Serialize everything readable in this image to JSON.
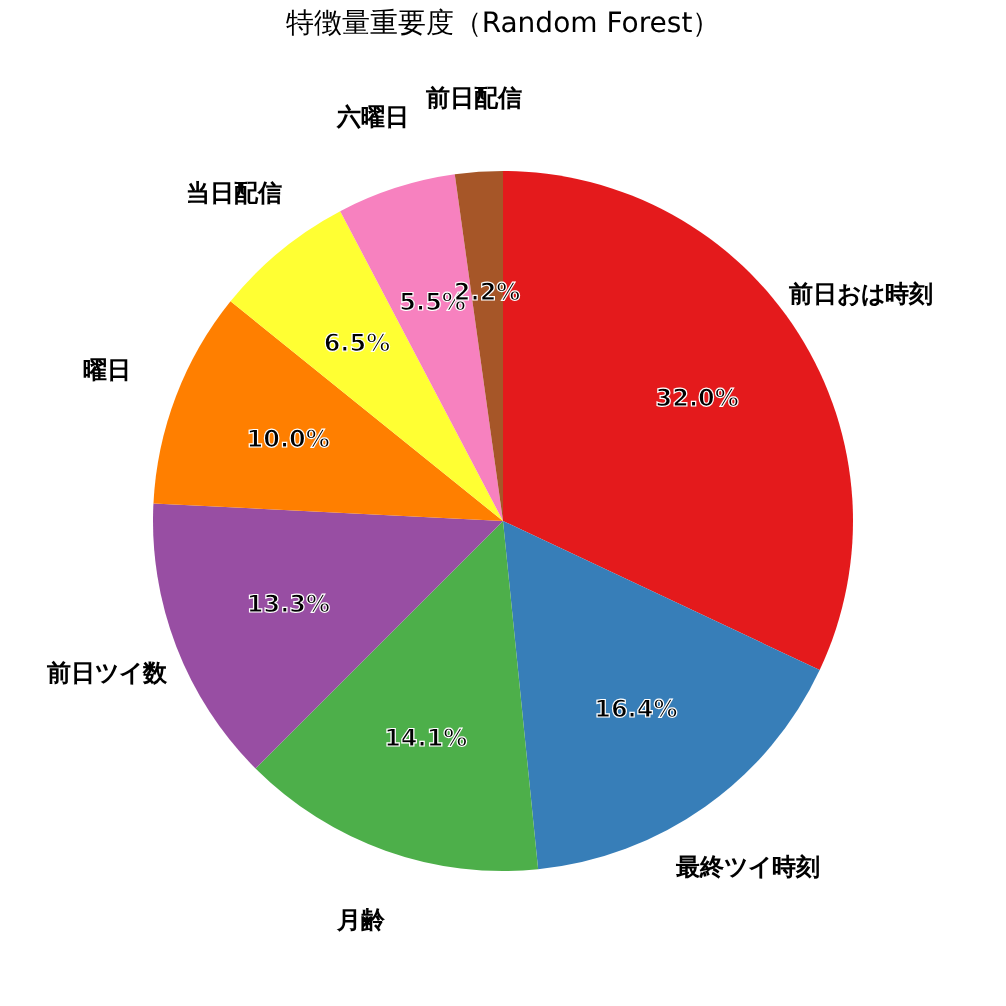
{
  "chart_data": {
    "type": "pie",
    "title": "特徴量重要度（Random Forest）",
    "categories": [
      "前日おは時刻",
      "最終ツイ時刻",
      "月齢",
      "前日ツイ数",
      "曜日",
      "当日配信",
      "六曜日",
      "前日配信"
    ],
    "values": [
      32.0,
      16.4,
      14.1,
      13.3,
      10.0,
      6.5,
      5.5,
      2.2
    ],
    "colors": [
      "#e41a1c",
      "#377eb8",
      "#4daf4a",
      "#984ea3",
      "#ff7f00",
      "#ffff33",
      "#f781bf",
      "#a65628"
    ],
    "value_labels": [
      "32.0%",
      "16.4%",
      "14.1%",
      "13.3%",
      "10.0%",
      "6.5%",
      "5.5%",
      "2.2%"
    ],
    "legend": false
  }
}
